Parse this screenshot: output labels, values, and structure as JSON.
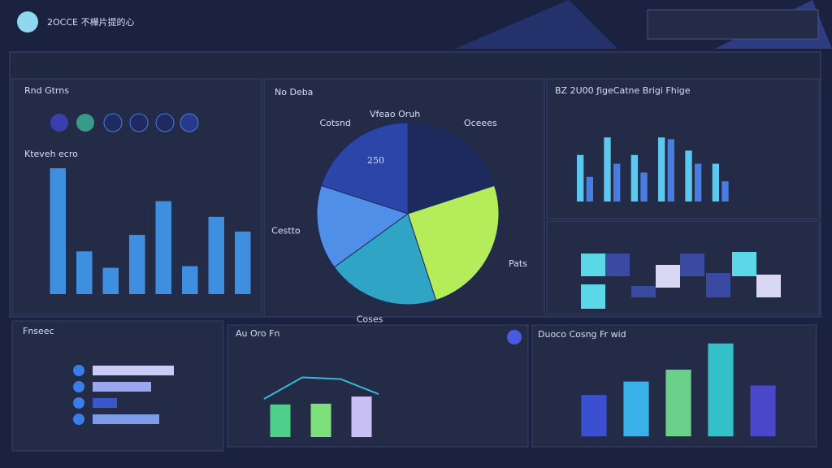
{
  "header": {
    "title": "2OCCE 不樺片提的心"
  },
  "labels": {
    "left_top": "Rnd Gtrns",
    "left_chart": "Kteveh ecro",
    "center": "No Deba",
    "bottom_left": "Fnseec"
  },
  "chart_data": [
    {
      "type": "bar",
      "title": "Kteveh ecro",
      "values": [
        153,
        52,
        32,
        72,
        113,
        34,
        94,
        76
      ],
      "color": "#3f8fe0",
      "ylim": [
        0,
        160
      ]
    },
    {
      "type": "pie",
      "title": "Vfeao Oruh",
      "annotation": "250",
      "categories": [
        "Oceees",
        "Pats",
        "Coses",
        "Cestto",
        "Cotsnd"
      ],
      "values": [
        20,
        25,
        20,
        15,
        20
      ],
      "colors": [
        "#1c2a5e",
        "#b5ec5a",
        "#2fa4c4",
        "#4f8fe8",
        "#2c45a8"
      ]
    },
    {
      "type": "grouped-bar",
      "title": "BZ 2U00 ƒigeCatne Brigi Fhige",
      "ylim": [
        0,
        100
      ],
      "series": [
        {
          "color": "#5bc8f0",
          "values": [
            53,
            73,
            53,
            73,
            58,
            43
          ]
        },
        {
          "color": "#4a7de0",
          "values": [
            28,
            43,
            33,
            71,
            43,
            23
          ]
        }
      ]
    },
    {
      "type": "hbar",
      "values": [
        100,
        72,
        30,
        82
      ],
      "xlim": [
        0,
        100
      ],
      "colors": [
        "#c9cdf5",
        "#9aa6ee",
        "#3a56c8",
        "#7f9ae8"
      ]
    },
    {
      "type": "combo",
      "title": "Au Oro Fn",
      "ylim": [
        0,
        100
      ],
      "values": [
        41,
        42,
        51
      ],
      "colors": [
        "#4fd08a",
        "#7de07a",
        "#c8c0f5"
      ],
      "line": {
        "color": "#3ab8d8",
        "values": [
          48,
          75,
          73,
          54
        ]
      }
    },
    {
      "type": "bar",
      "title": "Duoco Cosng Fr wid",
      "values": [
        52,
        69,
        84,
        117,
        64
      ],
      "colors": [
        "#3a50d0",
        "#3ab0e8",
        "#6ad08a",
        "#34c0c8",
        "#4a48c8"
      ],
      "ylim": [
        0,
        130
      ]
    }
  ]
}
